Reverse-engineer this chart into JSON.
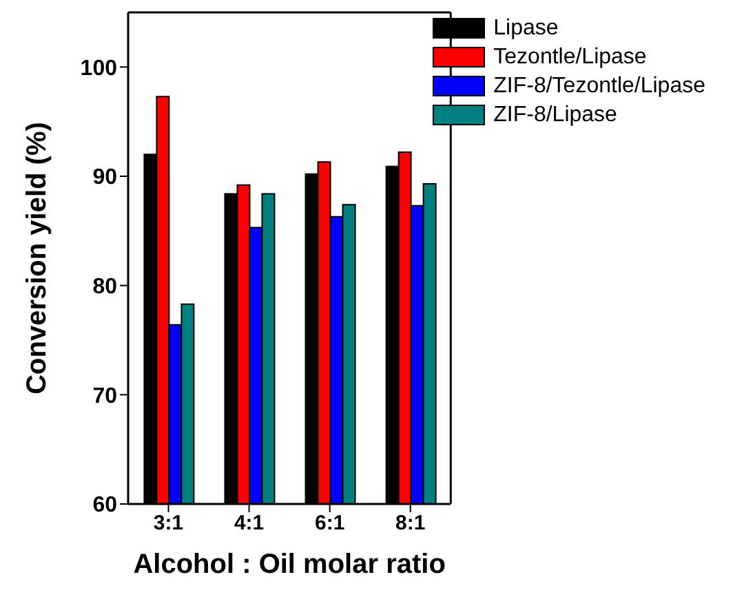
{
  "chart_data": {
    "type": "bar",
    "xlabel": "Alcohol : Oil molar ratio",
    "ylabel": "Conversion yield (%)",
    "categories": [
      "3:1",
      "4:1",
      "6:1",
      "8:1"
    ],
    "series": [
      {
        "name": "Lipase",
        "color": "#000000",
        "values": [
          92.0,
          88.4,
          90.2,
          90.9
        ]
      },
      {
        "name": "Tezontle/Lipase",
        "color": "#ff0000",
        "values": [
          97.3,
          89.2,
          91.3,
          92.2
        ]
      },
      {
        "name": "ZIF-8/Tezontle/Lipase",
        "color": "#0000ff",
        "values": [
          76.4,
          85.3,
          86.3,
          87.3
        ]
      },
      {
        "name": "ZIF-8/Lipase",
        "color": "#008080",
        "values": [
          78.3,
          88.4,
          87.4,
          89.3
        ]
      }
    ],
    "ylim": [
      60,
      105
    ],
    "yticks": [
      60,
      70,
      80,
      90,
      100
    ],
    "grid": false,
    "legend": "top right"
  }
}
